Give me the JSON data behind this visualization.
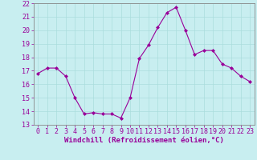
{
  "x": [
    0,
    1,
    2,
    3,
    4,
    5,
    6,
    7,
    8,
    9,
    10,
    11,
    12,
    13,
    14,
    15,
    16,
    17,
    18,
    19,
    20,
    21,
    22,
    23
  ],
  "y": [
    16.8,
    17.2,
    17.2,
    16.6,
    15.0,
    13.8,
    13.9,
    13.8,
    13.8,
    13.5,
    15.0,
    17.9,
    18.9,
    20.2,
    21.3,
    21.7,
    20.0,
    18.2,
    18.5,
    18.5,
    17.5,
    17.2,
    16.6,
    16.2
  ],
  "line_color": "#990099",
  "marker": "D",
  "marker_size": 2.0,
  "background_color": "#c8eef0",
  "grid_color": "#aadddd",
  "xlabel": "Windchill (Refroidissement éolien,°C)",
  "ylim": [
    13,
    22
  ],
  "xlim": [
    -0.5,
    23.5
  ],
  "yticks": [
    13,
    14,
    15,
    16,
    17,
    18,
    19,
    20,
    21,
    22
  ],
  "xticks": [
    0,
    1,
    2,
    3,
    4,
    5,
    6,
    7,
    8,
    9,
    10,
    11,
    12,
    13,
    14,
    15,
    16,
    17,
    18,
    19,
    20,
    21,
    22,
    23
  ],
  "tick_color": "#990099",
  "label_color": "#990099",
  "axis_color": "#888888",
  "xlabel_fontsize": 6.5,
  "tick_fontsize": 6.0
}
